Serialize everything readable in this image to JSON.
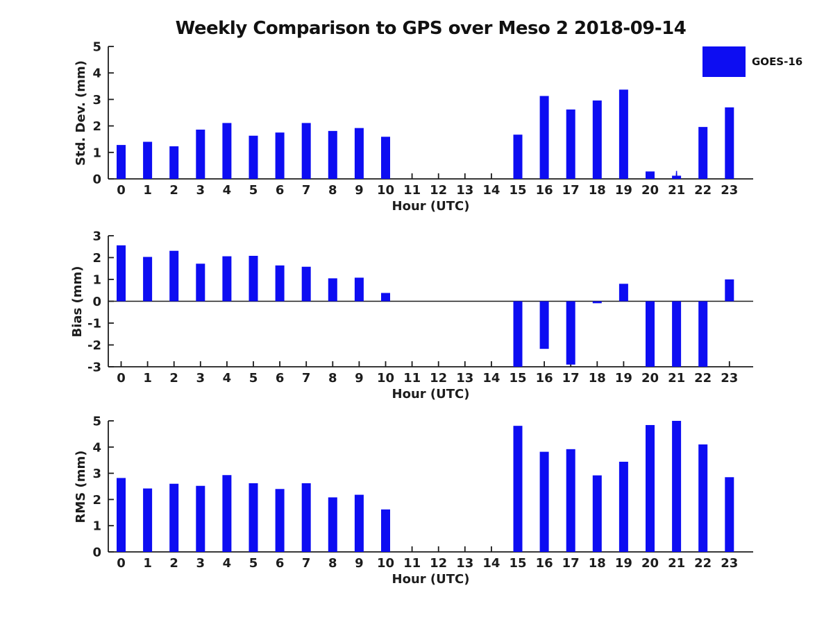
{
  "title": "Weekly Comparison to GPS over Meso 2 2018-09-14",
  "legend": {
    "label": "GOES-16",
    "color": "#0d0df2"
  },
  "colors": {
    "bar": "#0d0df2",
    "axis": "#1c1c1c",
    "text": "#1c1c1c"
  },
  "chart_data": [
    {
      "type": "bar",
      "id": "std-dev",
      "ylabel": "Std. Dev. (mm)",
      "xlabel": "Hour (UTC)",
      "x": [
        0,
        1,
        2,
        3,
        4,
        5,
        6,
        7,
        8,
        9,
        10,
        11,
        12,
        13,
        14,
        15,
        16,
        17,
        18,
        19,
        20,
        21,
        22,
        23
      ],
      "values": [
        1.28,
        1.4,
        1.23,
        1.86,
        2.11,
        1.63,
        1.75,
        2.11,
        1.81,
        1.92,
        1.59,
        0,
        0,
        0,
        0,
        1.67,
        3.13,
        2.62,
        2.96,
        3.37,
        0.28,
        0.12,
        1.96,
        2.7
      ],
      "ylim": [
        0,
        5
      ],
      "yticks": [
        0,
        1,
        2,
        3,
        4,
        5
      ],
      "whiskers": [
        {
          "x": 21,
          "base": 0.12,
          "top": 0.3
        }
      ],
      "legend_entry": "GOES-16",
      "grid": false
    },
    {
      "type": "bar",
      "id": "bias",
      "ylabel": "Bias (mm)",
      "xlabel": "Hour (UTC)",
      "x": [
        0,
        1,
        2,
        3,
        4,
        5,
        6,
        7,
        8,
        9,
        10,
        11,
        12,
        13,
        14,
        15,
        16,
        17,
        18,
        19,
        20,
        21,
        22,
        23
      ],
      "values": [
        2.56,
        2.03,
        2.31,
        1.72,
        2.06,
        2.08,
        1.64,
        1.58,
        1.05,
        1.08,
        0.38,
        0,
        0,
        0,
        0,
        -3.0,
        -2.18,
        -2.9,
        -0.09,
        0.8,
        -3.0,
        -3.0,
        -3.0,
        1.0
      ],
      "ylim": [
        -3,
        3
      ],
      "yticks": [
        -3,
        -2,
        -1,
        0,
        1,
        2,
        3
      ],
      "whiskers": [],
      "grid": false
    },
    {
      "type": "bar",
      "id": "rms",
      "ylabel": "RMS (mm)",
      "xlabel": "Hour (UTC)",
      "x": [
        0,
        1,
        2,
        3,
        4,
        5,
        6,
        7,
        8,
        9,
        10,
        11,
        12,
        13,
        14,
        15,
        16,
        17,
        18,
        19,
        20,
        21,
        22,
        23
      ],
      "values": [
        2.82,
        2.42,
        2.6,
        2.52,
        2.93,
        2.62,
        2.4,
        2.62,
        2.08,
        2.18,
        1.62,
        0,
        0,
        0,
        0,
        4.81,
        3.82,
        3.92,
        2.92,
        3.44,
        4.84,
        5.0,
        4.1,
        2.85
      ],
      "ylim": [
        0,
        5
      ],
      "yticks": [
        0,
        1,
        2,
        3,
        4,
        5
      ],
      "whiskers": [],
      "grid": false
    }
  ]
}
